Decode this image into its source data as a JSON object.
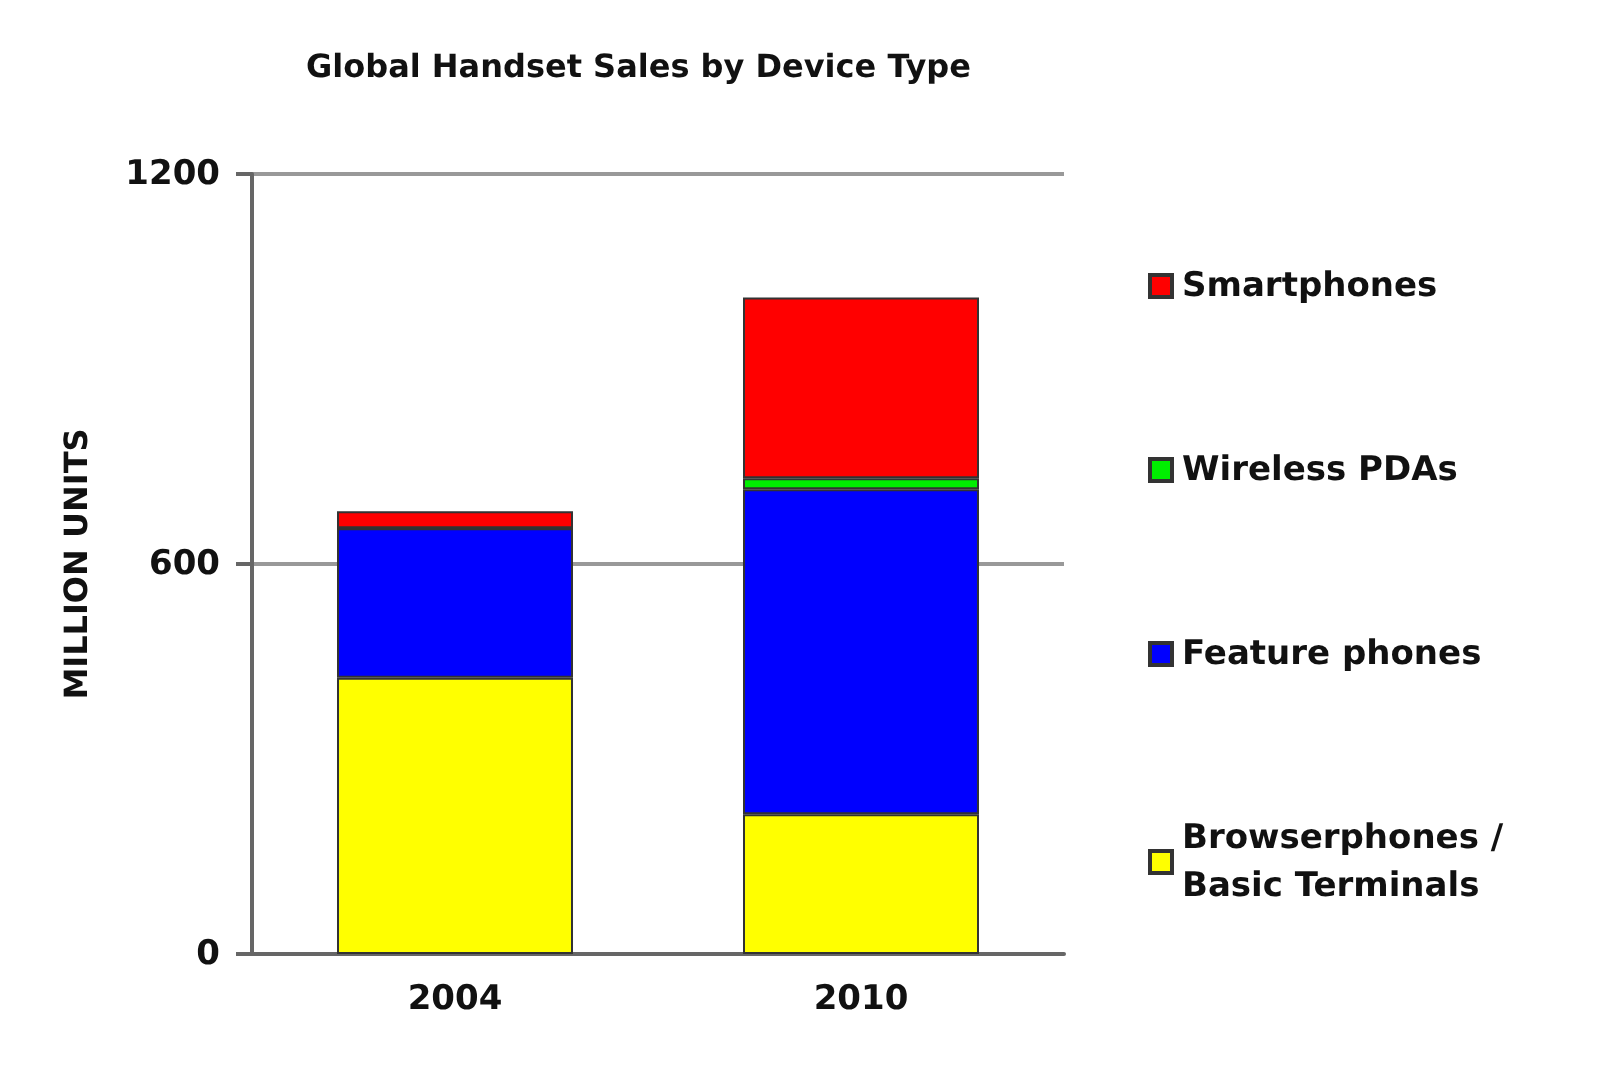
{
  "chart_data": {
    "type": "bar",
    "title": "Global Handset Sales by Device Type",
    "ylabel": "MILLION UNITS",
    "categories": [
      "2004",
      "2010"
    ],
    "stacked": true,
    "series": [
      {
        "name": "Browserphones / Basic Terminals",
        "color": "#ffff00",
        "values": [
          425,
          215
        ]
      },
      {
        "name": "Feature phones",
        "color": "#0000ff",
        "values": [
          230,
          500
        ]
      },
      {
        "name": "Wireless PDAs",
        "color": "#00ee00",
        "values": [
          0,
          17
        ]
      },
      {
        "name": "Smartphones",
        "color": "#ff0000",
        "values": [
          26,
          278
        ]
      }
    ],
    "ylim": [
      0,
      1200
    ],
    "yticks": [
      0,
      600,
      1200
    ],
    "grid": "y",
    "legend": "right"
  }
}
